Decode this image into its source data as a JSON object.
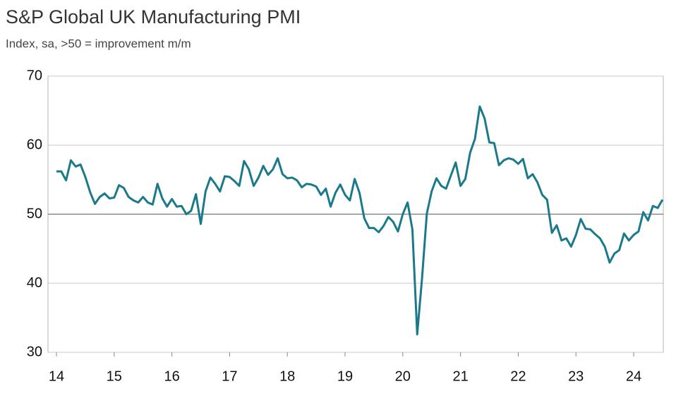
{
  "chart_data": {
    "type": "line",
    "title": "S&P Global UK Manufacturing PMI",
    "subtitle": "Index, sa, >50 = improvement m/m",
    "categories": [
      "14",
      null,
      null,
      null,
      null,
      null,
      null,
      null,
      null,
      null,
      null,
      null,
      "15",
      null,
      null,
      null,
      null,
      null,
      null,
      null,
      null,
      null,
      null,
      null,
      "16",
      null,
      null,
      null,
      null,
      null,
      null,
      null,
      null,
      null,
      null,
      null,
      "17",
      null,
      null,
      null,
      null,
      null,
      null,
      null,
      null,
      null,
      null,
      null,
      "18",
      null,
      null,
      null,
      null,
      null,
      null,
      null,
      null,
      null,
      null,
      null,
      "19",
      null,
      null,
      null,
      null,
      null,
      null,
      null,
      null,
      null,
      null,
      null,
      "20",
      null,
      null,
      null,
      null,
      null,
      null,
      null,
      null,
      null,
      null,
      null,
      "21",
      null,
      null,
      null,
      null,
      null,
      null,
      null,
      null,
      null,
      null,
      null,
      "22",
      null,
      null,
      null,
      null,
      null,
      null,
      null,
      null,
      null,
      null,
      null,
      "23",
      null,
      null,
      null,
      null,
      null,
      null,
      null,
      null,
      null,
      null,
      null,
      "24",
      null,
      null,
      null,
      null,
      null,
      null
    ],
    "series": [
      {
        "name": "S&P Global UK Manufacturing PMI",
        "color": "#1a7a89",
        "values": [
          56.2,
          56.2,
          54.9,
          57.8,
          56.9,
          57.2,
          55.4,
          53.2,
          51.5,
          52.5,
          53.0,
          52.3,
          52.4,
          54.2,
          53.8,
          52.5,
          52.0,
          51.7,
          52.5,
          51.7,
          51.4,
          54.4,
          52.3,
          51.1,
          52.2,
          51.1,
          51.2,
          50.0,
          50.5,
          52.9,
          48.6,
          53.3,
          55.3,
          54.4,
          53.3,
          55.5,
          55.4,
          54.8,
          54.1,
          57.7,
          56.5,
          54.1,
          55.3,
          57.0,
          55.7,
          56.5,
          58.1,
          55.8,
          55.2,
          55.3,
          54.9,
          53.9,
          54.4,
          54.3,
          54.0,
          52.8,
          53.7,
          51.1,
          53.1,
          54.3,
          52.8,
          52.0,
          55.1,
          53.1,
          49.4,
          48.0,
          48.0,
          47.4,
          48.3,
          49.6,
          48.9,
          47.5,
          50.0,
          51.7,
          47.8,
          32.6,
          40.7,
          50.1,
          53.3,
          55.2,
          54.1,
          53.7,
          55.6,
          57.5,
          54.1,
          55.1,
          58.9,
          60.9,
          65.6,
          63.9,
          60.4,
          60.3,
          57.1,
          57.8,
          58.1,
          57.9,
          57.3,
          58.0,
          55.2,
          55.8,
          54.6,
          52.8,
          52.1,
          47.3,
          48.4,
          46.2,
          46.5,
          45.3,
          47.0,
          49.3,
          47.9,
          47.8,
          47.1,
          46.5,
          45.3,
          43.0,
          44.3,
          44.8,
          47.2,
          46.2,
          47.0,
          47.5,
          50.3,
          49.1,
          51.2,
          50.9,
          52.1
        ]
      }
    ],
    "ylim": [
      30,
      70
    ],
    "yticks": [
      30,
      40,
      50,
      60,
      70
    ],
    "grid": true,
    "reference_line": 50
  }
}
